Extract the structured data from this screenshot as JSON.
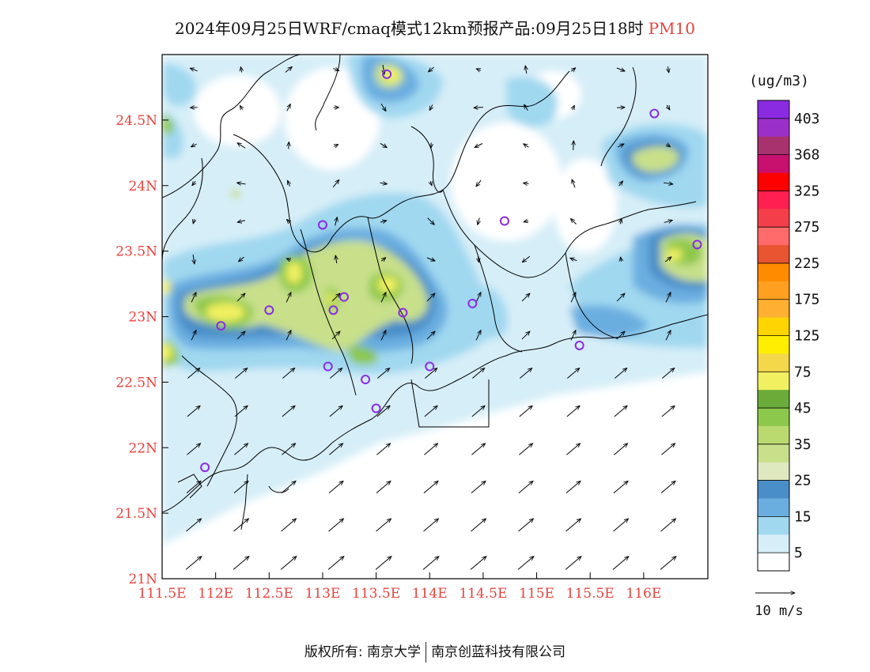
{
  "title": {
    "main": "2024年09月25日WRF/cmaq模式12km预报产品:09月25日18时",
    "pollutant": "PM10"
  },
  "axes": {
    "lat_ticks": [
      "21N",
      "21.5N",
      "22N",
      "22.5N",
      "23N",
      "23.5N",
      "24N",
      "24.5N"
    ],
    "lon_ticks": [
      "111.5E",
      "112E",
      "112.5E",
      "113E",
      "113.5E",
      "114E",
      "114.5E",
      "115E",
      "115.5E",
      "116E"
    ],
    "tick_color": "#e8423c"
  },
  "legend": {
    "unit": "(ug/m3)",
    "labels": [
      "403",
      "368",
      "325",
      "275",
      "225",
      "175",
      "125",
      "75",
      "45",
      "35",
      "25",
      "15",
      "5"
    ],
    "colors_top_to_bottom": [
      "#8a2be2",
      "#9b30c8",
      "#a8326e",
      "#c8106e",
      "#ff0000",
      "#ff2050",
      "#f43f4a",
      "#ff6a6a",
      "#e85530",
      "#ff8c00",
      "#ffa020",
      "#ffb030",
      "#ffd500",
      "#ffee00",
      "#f5d84a",
      "#f0f060",
      "#6aab3a",
      "#8cc84b",
      "#bada70",
      "#c8e08a",
      "#dfe9bf",
      "#4a8ec8",
      "#6aaee0",
      "#a0d8f0",
      "#d6eef8",
      "#ffffff"
    ]
  },
  "wind_reference": {
    "label": "10 m/s"
  },
  "chart_data": {
    "type": "heatmap",
    "title": "2024年09月25日WRF/cmaq模式12km预报产品:09月25日18时 PM10",
    "xlim": [
      111.5,
      116.6
    ],
    "ylim": [
      21,
      25
    ],
    "hotspots": [
      {
        "lon": 113.6,
        "lat": 24.85,
        "value": 45
      },
      {
        "lon": 111.55,
        "lat": 24.5,
        "value": 45
      },
      {
        "lon": 112.1,
        "lat": 23.95,
        "value": 45
      },
      {
        "lon": 112.3,
        "lat": 23.0,
        "value": 75
      },
      {
        "lon": 112.0,
        "lat": 22.95,
        "value": 75
      },
      {
        "lon": 112.6,
        "lat": 23.35,
        "value": 75
      },
      {
        "lon": 113.05,
        "lat": 23.2,
        "value": 75
      },
      {
        "lon": 113.5,
        "lat": 23.25,
        "value": 75
      },
      {
        "lon": 113.35,
        "lat": 22.7,
        "value": 45
      },
      {
        "lon": 111.55,
        "lat": 22.75,
        "value": 45
      },
      {
        "lon": 116.25,
        "lat": 24.05,
        "value": 35
      },
      {
        "lon": 116.4,
        "lat": 23.5,
        "value": 75
      },
      {
        "lon": 111.5,
        "lat": 23.2,
        "value": 45
      }
    ],
    "stations": [
      {
        "lon": 113.6,
        "lat": 24.85
      },
      {
        "lon": 116.1,
        "lat": 24.55
      },
      {
        "lon": 113.0,
        "lat": 23.7
      },
      {
        "lon": 114.7,
        "lat": 23.73
      },
      {
        "lon": 116.5,
        "lat": 23.55
      },
      {
        "lon": 113.2,
        "lat": 23.15
      },
      {
        "lon": 113.1,
        "lat": 23.05
      },
      {
        "lon": 112.5,
        "lat": 23.05
      },
      {
        "lon": 113.75,
        "lat": 23.03
      },
      {
        "lon": 114.4,
        "lat": 23.1
      },
      {
        "lon": 112.05,
        "lat": 22.93
      },
      {
        "lon": 115.4,
        "lat": 22.78
      },
      {
        "lon": 113.05,
        "lat": 22.62
      },
      {
        "lon": 114.0,
        "lat": 22.62
      },
      {
        "lon": 113.4,
        "lat": 22.52
      },
      {
        "lon": 113.5,
        "lat": 22.3
      },
      {
        "lon": 111.9,
        "lat": 21.85
      }
    ],
    "wind": "southwesterly over the sea and south, weak and variable inland"
  }
}
